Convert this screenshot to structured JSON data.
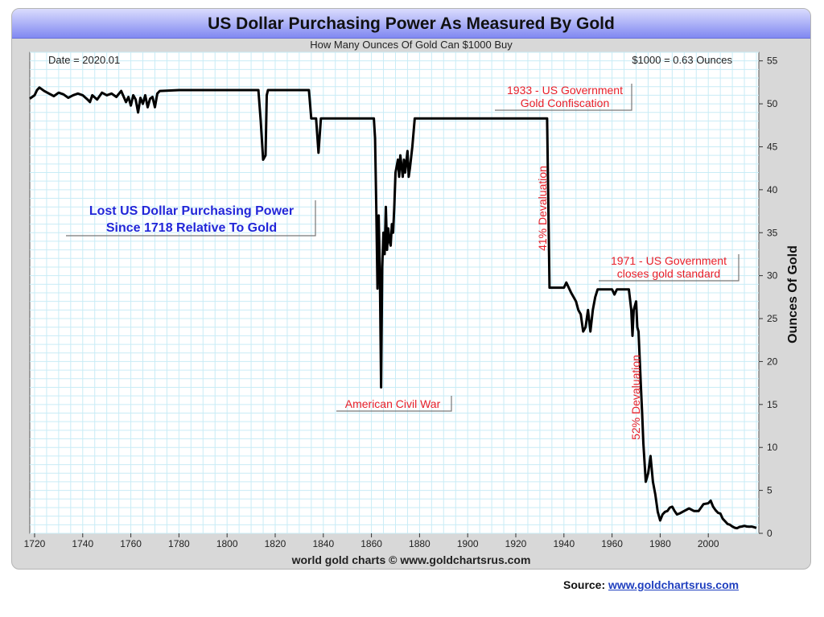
{
  "chart_data": {
    "type": "line",
    "title": "US Dollar Purchasing Power As Measured By Gold",
    "subtitle": "How Many Ounces Of Gold Can $1000 Buy",
    "ylabel": "Ounces Of Gold",
    "xlim": [
      1718,
      2021
    ],
    "ylim": [
      0,
      56
    ],
    "x_ticks": [
      1720,
      1740,
      1760,
      1780,
      1800,
      1820,
      1840,
      1860,
      1880,
      1900,
      1920,
      1940,
      1960,
      1980,
      2000
    ],
    "y_ticks": [
      0,
      5,
      10,
      15,
      20,
      25,
      30,
      35,
      40,
      45,
      50,
      55
    ],
    "grid": true,
    "series": [
      {
        "color": "#000000",
        "points": [
          [
            1718,
            50.6
          ],
          [
            1720,
            51.0
          ],
          [
            1721,
            51.6
          ],
          [
            1722,
            51.9
          ],
          [
            1724,
            51.5
          ],
          [
            1726,
            51.2
          ],
          [
            1728,
            50.9
          ],
          [
            1730,
            51.3
          ],
          [
            1732,
            51.1
          ],
          [
            1734,
            50.7
          ],
          [
            1736,
            51.0
          ],
          [
            1738,
            51.2
          ],
          [
            1740,
            51.0
          ],
          [
            1742,
            50.5
          ],
          [
            1743,
            50.2
          ],
          [
            1744,
            51.0
          ],
          [
            1746,
            50.5
          ],
          [
            1748,
            51.3
          ],
          [
            1750,
            51.0
          ],
          [
            1752,
            51.2
          ],
          [
            1754,
            50.8
          ],
          [
            1756,
            51.5
          ],
          [
            1758,
            50.2
          ],
          [
            1759,
            50.8
          ],
          [
            1760,
            49.8
          ],
          [
            1761,
            51.0
          ],
          [
            1762,
            50.5
          ],
          [
            1763,
            49.0
          ],
          [
            1764,
            50.7
          ],
          [
            1765,
            50.0
          ],
          [
            1766,
            51.0
          ],
          [
            1767,
            49.6
          ],
          [
            1768,
            50.6
          ],
          [
            1769,
            50.8
          ],
          [
            1770,
            49.6
          ],
          [
            1771,
            51.2
          ],
          [
            1772,
            51.5
          ],
          [
            1780,
            51.6
          ],
          [
            1800,
            51.6
          ],
          [
            1813,
            51.6
          ],
          [
            1814,
            48.0
          ],
          [
            1815,
            43.5
          ],
          [
            1816,
            44.0
          ],
          [
            1816.5,
            51.0
          ],
          [
            1817,
            51.6
          ],
          [
            1834,
            51.6
          ],
          [
            1835,
            48.3
          ],
          [
            1837,
            48.3
          ],
          [
            1838,
            44.3
          ],
          [
            1839,
            48.3
          ],
          [
            1861,
            48.3
          ],
          [
            1861.5,
            46.0
          ],
          [
            1862,
            38.0
          ],
          [
            1862.5,
            28.5
          ],
          [
            1863,
            37.0
          ],
          [
            1863.5,
            30.0
          ],
          [
            1864,
            17.0
          ],
          [
            1864.5,
            31.0
          ],
          [
            1865,
            35.0
          ],
          [
            1865.5,
            32.5
          ],
          [
            1866,
            38.0
          ],
          [
            1866.5,
            33.0
          ],
          [
            1867,
            35.5
          ],
          [
            1867.5,
            34.0
          ],
          [
            1868,
            33.5
          ],
          [
            1868.5,
            36.0
          ],
          [
            1869,
            35.0
          ],
          [
            1869.5,
            38.0
          ],
          [
            1870,
            42.0
          ],
          [
            1871,
            43.5
          ],
          [
            1871.5,
            41.5
          ],
          [
            1872,
            44.0
          ],
          [
            1873,
            41.5
          ],
          [
            1873.5,
            43.5
          ],
          [
            1874,
            42.0
          ],
          [
            1875,
            44.5
          ],
          [
            1875.5,
            41.5
          ],
          [
            1876,
            42.5
          ],
          [
            1877,
            45.0
          ],
          [
            1878,
            48.3
          ],
          [
            1933,
            48.3
          ],
          [
            1934,
            28.6
          ],
          [
            1940,
            28.6
          ],
          [
            1941,
            29.2
          ],
          [
            1942,
            28.6
          ],
          [
            1943,
            28.0
          ],
          [
            1944,
            27.5
          ],
          [
            1945,
            27.0
          ],
          [
            1946,
            26.0
          ],
          [
            1947,
            25.5
          ],
          [
            1948,
            23.5
          ],
          [
            1949,
            24.0
          ],
          [
            1950,
            26.0
          ],
          [
            1951,
            23.5
          ],
          [
            1952,
            26.0
          ],
          [
            1953,
            27.5
          ],
          [
            1954,
            28.4
          ],
          [
            1960,
            28.4
          ],
          [
            1961,
            27.8
          ],
          [
            1962,
            28.4
          ],
          [
            1967,
            28.4
          ],
          [
            1968,
            26.0
          ],
          [
            1968.5,
            23.0
          ],
          [
            1969,
            26.0
          ],
          [
            1970,
            27.0
          ],
          [
            1970.5,
            24.0
          ],
          [
            1971,
            23.5
          ],
          [
            1972,
            17.0
          ],
          [
            1972.5,
            14.0
          ],
          [
            1973,
            10.5
          ],
          [
            1974,
            6.0
          ],
          [
            1975,
            7.0
          ],
          [
            1976,
            9.0
          ],
          [
            1976.5,
            7.5
          ],
          [
            1977,
            6.0
          ],
          [
            1978,
            4.5
          ],
          [
            1979,
            2.5
          ],
          [
            1980,
            1.5
          ],
          [
            1981,
            2.2
          ],
          [
            1982,
            2.5
          ],
          [
            1983,
            2.6
          ],
          [
            1984,
            3.0
          ],
          [
            1985,
            3.1
          ],
          [
            1986,
            2.6
          ],
          [
            1987,
            2.2
          ],
          [
            1988,
            2.3
          ],
          [
            1990,
            2.6
          ],
          [
            1992,
            2.9
          ],
          [
            1994,
            2.6
          ],
          [
            1996,
            2.6
          ],
          [
            1998,
            3.4
          ],
          [
            2000,
            3.5
          ],
          [
            2001,
            3.8
          ],
          [
            2002,
            3.1
          ],
          [
            2003,
            2.7
          ],
          [
            2004,
            2.4
          ],
          [
            2005,
            2.3
          ],
          [
            2006,
            1.7
          ],
          [
            2007,
            1.4
          ],
          [
            2008,
            1.1
          ],
          [
            2009,
            1.0
          ],
          [
            2010,
            0.8
          ],
          [
            2011,
            0.65
          ],
          [
            2012,
            0.6
          ],
          [
            2013,
            0.75
          ],
          [
            2014,
            0.8
          ],
          [
            2015,
            0.87
          ],
          [
            2016,
            0.8
          ],
          [
            2017,
            0.78
          ],
          [
            2018,
            0.79
          ],
          [
            2019,
            0.72
          ],
          [
            2020,
            0.63
          ]
        ]
      }
    ],
    "annotations": {
      "date_label": "Date = 2020.01",
      "value_label": "$1000 = 0.63 Ounces",
      "lost_label_line1": "Lost US Dollar Purchasing Power",
      "lost_label_line2": "Since 1718 Relative To Gold",
      "civil_war": "American Civil War",
      "confiscation_line1": "1933 - US Government",
      "confiscation_line2": "Gold Confiscation",
      "gold_standard_line1": "1971 - US Government",
      "gold_standard_line2": "closes gold standard",
      "devaluation_41": "41% Devaluation",
      "devaluation_52": "52% Devaluation"
    },
    "credit": "world gold charts © www.goldchartsrus.com",
    "colors": {
      "annotation_red": "#e8202a",
      "annotation_blue": "#2226d8",
      "grid": "#c9ecf6",
      "line": "#000000"
    }
  },
  "source": {
    "label": "Source:",
    "link_text": "www.goldchartsrus.com"
  }
}
